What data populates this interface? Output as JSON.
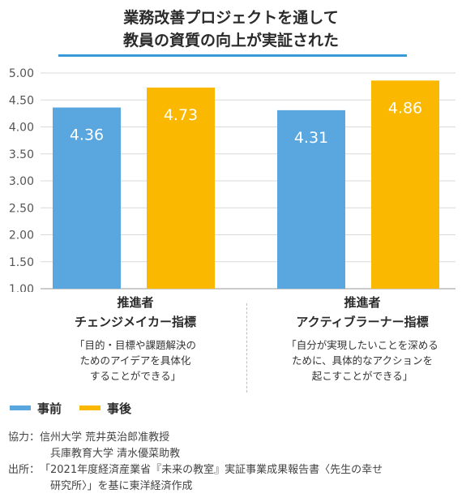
{
  "title_line1": "業務改善プロジェクトを通して",
  "title_line2": "教員の資質の向上が実証された",
  "chart_data": {
    "type": "bar",
    "categories": [
      "推進者 チェンジメイカー指標",
      "推進者 アクティブラーナー指標"
    ],
    "series": [
      {
        "name": "事前",
        "values": [
          4.36,
          4.31
        ],
        "labels": [
          "4.36",
          "4.31"
        ],
        "color": "#5aa7e0"
      },
      {
        "name": "事後",
        "values": [
          4.73,
          4.86
        ],
        "labels": [
          "4.73",
          "4.86"
        ],
        "color": "#fbb800"
      }
    ],
    "ylim": [
      1.0,
      5.0
    ],
    "yticks": [
      "1.00",
      "1.50",
      "2.00",
      "2.50",
      "3.00",
      "3.50",
      "4.00",
      "4.50",
      "5.00"
    ],
    "grid": true,
    "legend": "bottom-left"
  },
  "groups": [
    {
      "name": "推進者",
      "index": "チェンジメイカー指標",
      "desc1": "「目的・目標や課題解決の",
      "desc2": "ためのアイデアを具体化",
      "desc3": "することができる」"
    },
    {
      "name": "推進者",
      "index": "アクティブラーナー指標",
      "desc1": "「自分が実現したいことを深める",
      "desc2": "ために、具体的なアクションを",
      "desc3": "起こすことができる」"
    }
  ],
  "legend": {
    "before": "事前",
    "after": "事後"
  },
  "credits": {
    "cooperation_key": "協力：",
    "cooperation_1": "信州大学 荒井英治郎准教授",
    "cooperation_2": "兵庫教育大学 清水優菜助教",
    "source_key": "出所：",
    "source_1": "「2021年度経済産業省『未来の教室』実証事業成果報告書〈先生の幸せ",
    "source_2": "研究所〉」を基に東洋経済作成"
  }
}
